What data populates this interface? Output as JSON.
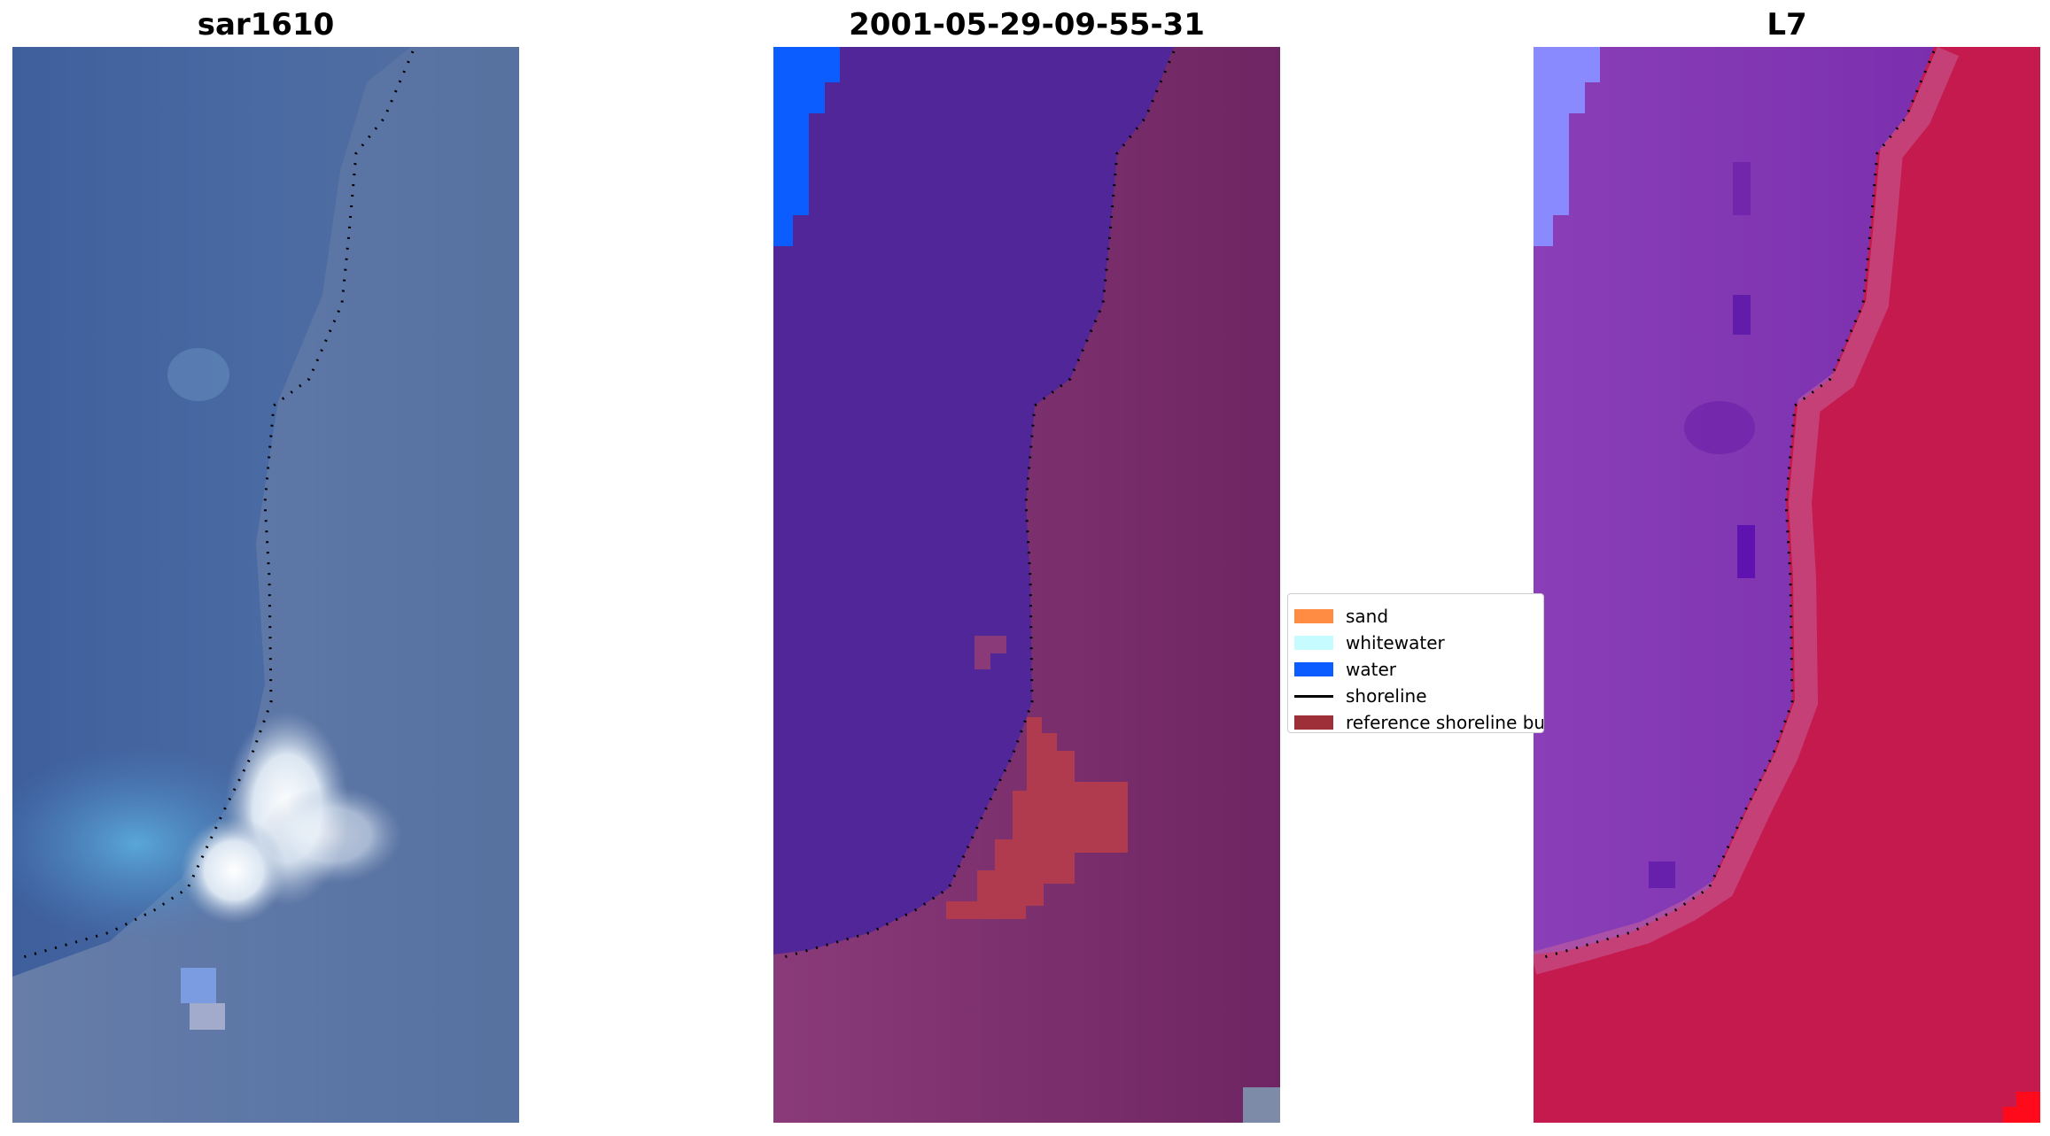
{
  "panels": [
    {
      "title": "sar1610",
      "image": "rgb-satellite-image"
    },
    {
      "title": "2001-05-29-09-55-31",
      "image": "classified-image"
    },
    {
      "title": "L7",
      "image": "mndwi-image"
    }
  ],
  "legend": {
    "items": [
      {
        "label": "sand",
        "color": "#ff8c42",
        "kind": "patch"
      },
      {
        "label": "whitewater",
        "color": "#c6fbff",
        "kind": "patch"
      },
      {
        "label": "water",
        "color": "#0b5dff",
        "kind": "patch"
      },
      {
        "label": "shoreline",
        "color": "#000000",
        "kind": "line"
      },
      {
        "label": "reference shoreline buffer",
        "color": "#9e2e38",
        "kind": "patch"
      }
    ]
  },
  "colors": {
    "sar_water": "#3b5f9e",
    "sar_land": "#6a7fa6",
    "class_water": "#512699",
    "class_land": "#7a2d6e",
    "class_buffer": "#b03a4e",
    "class_water_bright": "#0b5dff",
    "ndwi_water": "#7b3bb4",
    "ndwi_land": "#c21a4e",
    "ndwi_bright": "#8a8aff"
  }
}
